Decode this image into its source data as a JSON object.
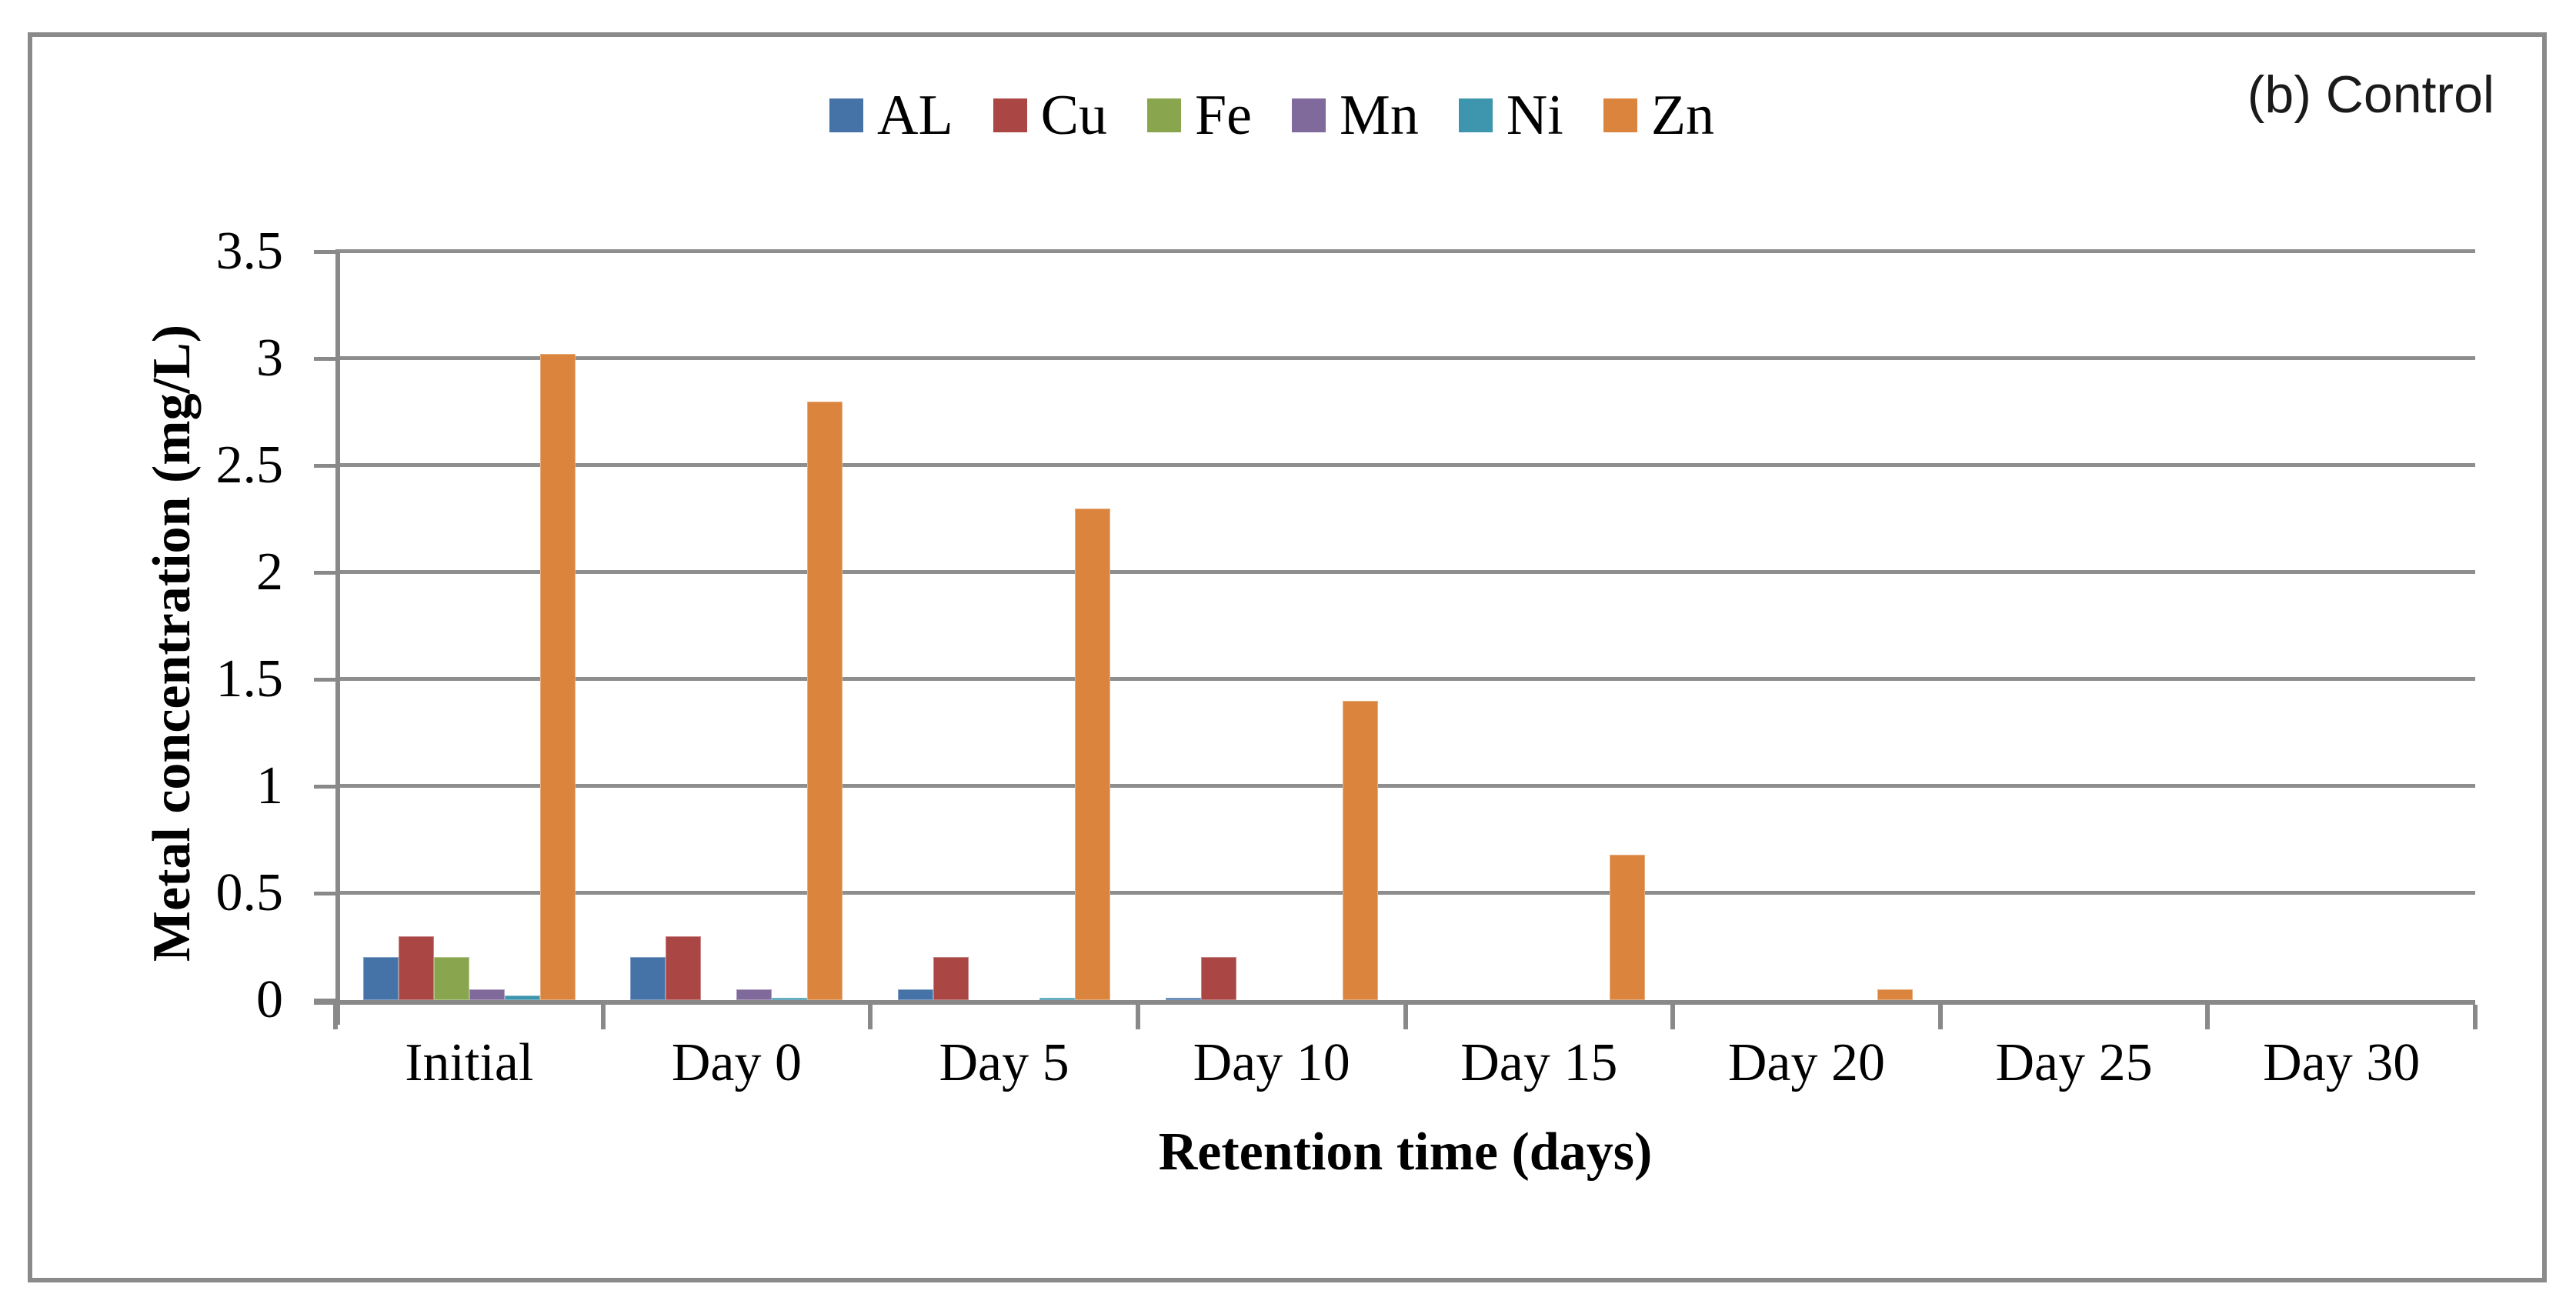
{
  "chart_data": {
    "type": "bar",
    "title": "(b) Control",
    "xlabel": "Retention time (days)",
    "ylabel": "Metal concentration (mg/L)",
    "categories": [
      "Initial",
      "Day 0",
      "Day 5",
      "Day 10",
      "Day 15",
      "Day 20",
      "Day 25",
      "Day 30"
    ],
    "series": [
      {
        "name": "AL",
        "color": "#4572A7",
        "values": [
          0.2,
          0.2,
          0.05,
          0.01,
          0,
          0,
          0,
          0
        ]
      },
      {
        "name": "Cu",
        "color": "#AA4643",
        "values": [
          0.3,
          0.3,
          0.2,
          0.2,
          0,
          0,
          0,
          0
        ]
      },
      {
        "name": "Fe",
        "color": "#89A54E",
        "values": [
          0.2,
          0,
          0,
          0,
          0,
          0,
          0,
          0
        ]
      },
      {
        "name": "Mn",
        "color": "#80699B",
        "values": [
          0.05,
          0.05,
          0,
          0,
          0,
          0,
          0,
          0
        ]
      },
      {
        "name": "Ni",
        "color": "#3D96AE",
        "values": [
          0.02,
          0.01,
          0.01,
          0,
          0,
          0,
          0,
          0
        ]
      },
      {
        "name": "Zn",
        "color": "#DB843D",
        "values": [
          3.02,
          2.8,
          2.3,
          1.4,
          0.68,
          0.05,
          0,
          0
        ]
      }
    ],
    "ylim": [
      0,
      3.5
    ],
    "ytick_step": 0.5,
    "ytick_labels": [
      "0",
      "0.5",
      "1",
      "1.5",
      "2",
      "2.5",
      "3",
      "3.5"
    ],
    "grid": true,
    "legend_position": "top-center",
    "colors": {
      "gridline": "#8e8e8e",
      "axis": "#898989",
      "frame_border": "#8a8a8a",
      "title_text": "#1a1a1a",
      "label_text": "#000000"
    }
  }
}
